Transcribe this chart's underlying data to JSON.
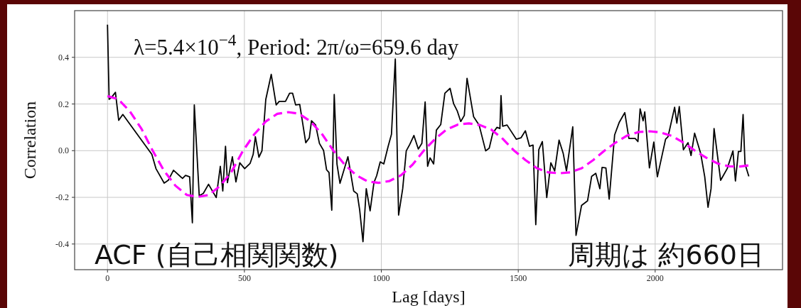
{
  "chart_data": {
    "type": "line",
    "xlabel": "Lag [days]",
    "ylabel": "Correlation",
    "annotations": [
      "λ=5.4×10$^{−4}$, Period: 2π/ω=659.6 day",
      "ACF (自己相関関数)",
      "周期は 約660日"
    ],
    "xlim": [
      -120,
      2465
    ],
    "ylim": [
      -0.51,
      0.6
    ],
    "xticks": [
      0,
      500,
      1000,
      1500,
      2000
    ],
    "yticks": [
      -0.4,
      -0.2,
      {
        "value": 0,
        "label": "0.0"
      },
      0.2,
      0.4
    ],
    "grid": true,
    "marker": "none",
    "series": [
      {
        "color": "#000000",
        "line_style": "solid",
        "x": [
          0,
          6,
          16,
          29,
          41,
          56,
          162,
          177,
          207,
          222,
          241,
          274,
          285,
          300,
          310,
          317,
          335,
          350,
          369,
          397,
          412,
          421,
          431,
          438,
          456,
          469,
          483,
          501,
          521,
          532,
          540,
          553,
          564,
          578,
          598,
          616,
          627,
          650,
          665,
          676,
          687,
          702,
          724,
          737,
          745,
          760,
          774,
          789,
          800,
          809,
          819,
          828,
          838,
          849,
          878,
          899,
          912,
          921,
          933,
          945,
          959,
          973,
          983,
          996,
          1009,
          1025,
          1037,
          1051,
          1063,
          1078,
          1091,
          1104,
          1119,
          1135,
          1148,
          1160,
          1169,
          1178,
          1191,
          1201,
          1217,
          1232,
          1251,
          1264,
          1277,
          1290,
          1303,
          1313,
          1337,
          1357,
          1381,
          1394,
          1407,
          1422,
          1433,
          1437,
          1443,
          1459,
          1493,
          1510,
          1526,
          1541,
          1554,
          1564,
          1575,
          1588,
          1604,
          1619,
          1633,
          1649,
          1664,
          1676,
          1699,
          1711,
          1731,
          1753,
          1768,
          1783,
          1798,
          1806,
          1820,
          1832,
          1852,
          1869,
          1889,
          1904,
          1927,
          1937,
          1945,
          1956,
          1962,
          1979,
          1995,
          2008,
          2038,
          2047,
          2071,
          2079,
          2088,
          2103,
          2120,
          2131,
          2144,
          2166,
          2181,
          2193,
          2204,
          2215,
          2239,
          2263,
          2284,
          2293,
          2304,
          2313,
          2321,
          2328,
          2342
        ],
        "values": [
          0.54,
          0.22,
          0.23,
          0.25,
          0.13,
          0.155,
          -0.016,
          -0.077,
          -0.139,
          -0.127,
          -0.084,
          -0.119,
          -0.106,
          -0.112,
          -0.309,
          0.196,
          -0.193,
          -0.183,
          -0.144,
          -0.201,
          -0.067,
          -0.173,
          0.019,
          -0.137,
          -0.026,
          -0.134,
          -0.052,
          -0.077,
          -0.054,
          -0.016,
          0.06,
          -0.028,
          -0.001,
          0.219,
          0.327,
          0.196,
          0.211,
          0.211,
          0.246,
          0.246,
          0.196,
          0.198,
          0.034,
          0.055,
          0.128,
          0.11,
          0.031,
          0.001,
          -0.082,
          -0.094,
          -0.255,
          0.241,
          -0.057,
          -0.14,
          -0.026,
          -0.173,
          -0.185,
          -0.255,
          -0.39,
          -0.163,
          -0.258,
          -0.137,
          -0.107,
          -0.048,
          -0.057,
          0.019,
          0.07,
          0.393,
          -0.276,
          -0.163,
          -0.001,
          0.027,
          0.065,
          0.007,
          0.031,
          0.209,
          -0.067,
          -0.031,
          -0.057,
          0.088,
          0.112,
          0.246,
          0.267,
          0.201,
          0.171,
          0.125,
          0.151,
          0.31,
          0.145,
          0.11,
          -0.001,
          0.011,
          0.075,
          0.1,
          0.095,
          0.236,
          0.105,
          0.11,
          0.049,
          0.055,
          0.085,
          0.019,
          0.024,
          -0.317,
          0.004,
          0.039,
          -0.201,
          -0.052,
          -0.087,
          0.045,
          -0.011,
          -0.087,
          0.102,
          -0.363,
          -0.235,
          -0.215,
          -0.11,
          -0.097,
          -0.163,
          -0.072,
          -0.074,
          -0.208,
          0.068,
          0.122,
          0.163,
          0.052,
          0.052,
          0.039,
          0.179,
          0.128,
          0.166,
          -0.074,
          0.037,
          -0.112,
          0.049,
          0.06,
          0.186,
          0.118,
          0.189,
          0.004,
          0.034,
          -0.021,
          0.075,
          -0.011,
          -0.112,
          -0.243,
          -0.163,
          0.095,
          -0.127,
          -0.077,
          -0.001,
          -0.13,
          -0.003,
          -0.003,
          0.155,
          -0.057,
          -0.11
        ]
      },
      {
        "color": "#ff00ff",
        "line_style": "dashed",
        "x": [
          0,
          40,
          82,
          124,
          165,
          206,
          248,
          290,
          330,
          370,
          412,
          453,
          495,
          536,
          578,
          620,
          660,
          700,
          742,
          784,
          825,
          866,
          908,
          950,
          990,
          1030,
          1072,
          1114,
          1155,
          1196,
          1238,
          1280,
          1320,
          1360,
          1402,
          1444,
          1485,
          1526,
          1568,
          1610,
          1650,
          1690,
          1732,
          1774,
          1815,
          1856,
          1898,
          1940,
          1980,
          2020,
          2062,
          2104,
          2145,
          2186,
          2228,
          2270,
          2310,
          2350
        ],
        "values": [
          0.234,
          0.22,
          0.168,
          0.094,
          0.0,
          -0.085,
          -0.15,
          -0.19,
          -0.198,
          -0.19,
          -0.15,
          -0.09,
          0.0,
          0.07,
          0.125,
          0.158,
          0.165,
          0.158,
          0.125,
          0.07,
          0.0,
          -0.06,
          -0.105,
          -0.132,
          -0.138,
          -0.13,
          -0.105,
          -0.06,
          0.0,
          0.05,
          0.09,
          0.112,
          0.117,
          0.11,
          0.09,
          0.05,
          0.0,
          -0.04,
          -0.075,
          -0.093,
          -0.097,
          -0.093,
          -0.075,
          -0.04,
          0.0,
          0.035,
          0.065,
          0.08,
          0.083,
          0.078,
          0.063,
          0.034,
          0.0,
          -0.03,
          -0.055,
          -0.067,
          -0.068,
          -0.062
        ]
      }
    ]
  }
}
